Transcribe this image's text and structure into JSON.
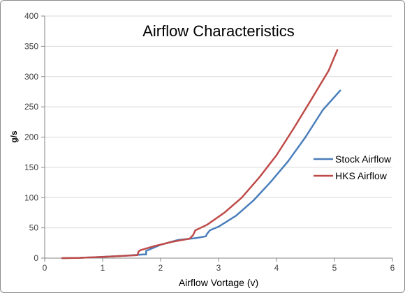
{
  "chart_data": {
    "type": "line",
    "title": "Airflow Characteristics",
    "xlabel": "Airflow Vortage (v)",
    "ylabel": "g/s",
    "xlim": [
      0,
      6
    ],
    "ylim": [
      0,
      400
    ],
    "xticks": [
      0,
      1,
      2,
      3,
      4,
      5,
      6
    ],
    "yticks": [
      0,
      50,
      100,
      150,
      200,
      250,
      300,
      350,
      400
    ],
    "grid": "horizontal",
    "legend": "right",
    "series": [
      {
        "name": "Stock Airflow",
        "color": "#4a7ebb",
        "x": [
          0.3,
          0.6,
          1.0,
          1.4,
          1.7,
          1.75,
          1.75,
          2.0,
          2.3,
          2.6,
          2.78,
          2.8,
          2.85,
          3.0,
          3.3,
          3.6,
          3.9,
          4.2,
          4.5,
          4.8,
          5.1
        ],
        "y": [
          0,
          0.5,
          2,
          4,
          6,
          6,
          12,
          22,
          30,
          33,
          36,
          40,
          46,
          52,
          70,
          95,
          126,
          160,
          200,
          245,
          277
        ]
      },
      {
        "name": "HKS Airflow",
        "color": "#be4b48",
        "x": [
          0.3,
          0.6,
          1.0,
          1.3,
          1.6,
          1.62,
          1.65,
          1.9,
          2.2,
          2.5,
          2.56,
          2.6,
          2.8,
          3.1,
          3.4,
          3.7,
          4.0,
          4.3,
          4.6,
          4.9,
          5.05
        ],
        "y": [
          0,
          0.5,
          2,
          3.5,
          5,
          11,
          13,
          20,
          27,
          32,
          38,
          46,
          55,
          75,
          100,
          133,
          170,
          215,
          262,
          310,
          344
        ]
      }
    ]
  }
}
